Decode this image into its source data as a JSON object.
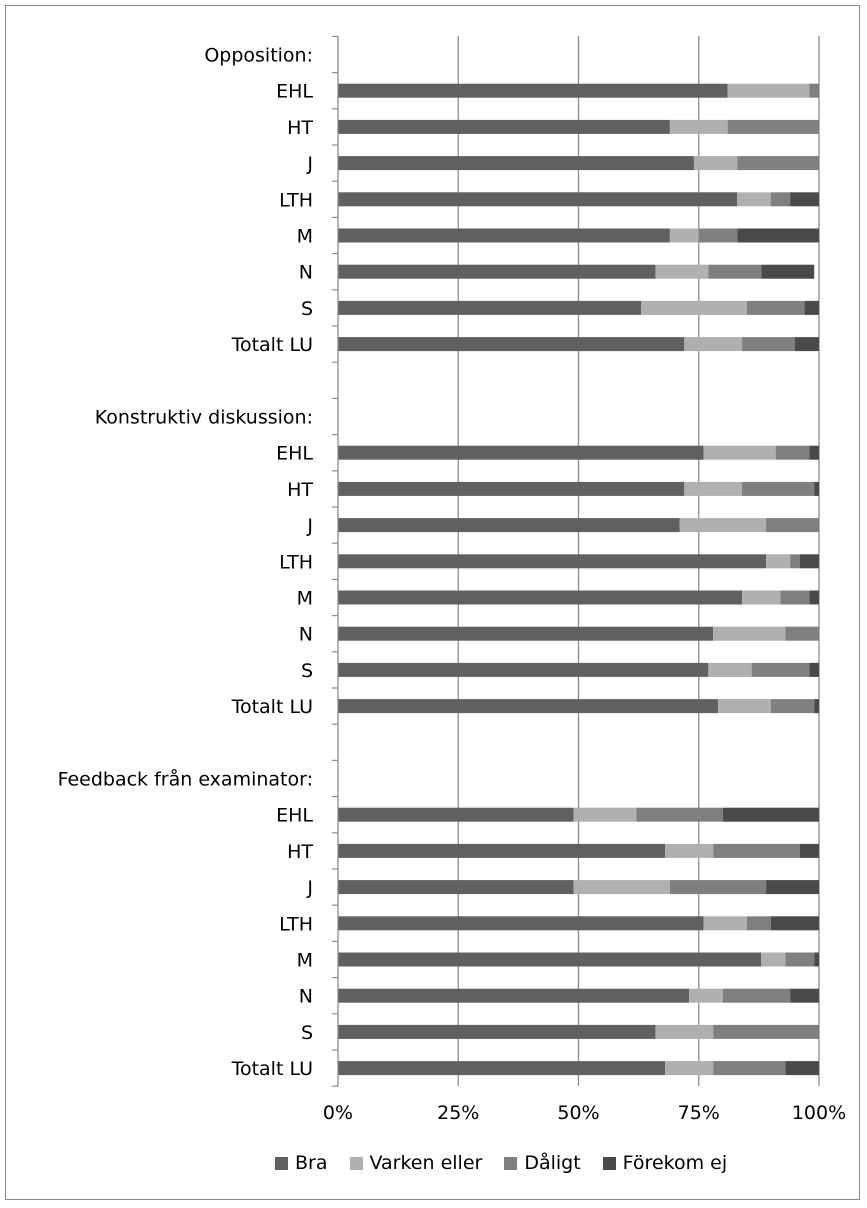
{
  "chart_data": {
    "type": "bar",
    "orientation": "horizontal",
    "stacked": true,
    "percent": true,
    "xlim": [
      0,
      100
    ],
    "xticks": [
      "0%",
      "25%",
      "50%",
      "75%",
      "100%"
    ],
    "grid": "vertical",
    "legend_position": "bottom",
    "categories": [
      "Opposition:",
      "EHL",
      "HT",
      "J",
      "LTH",
      "M",
      "N",
      "S",
      "Totalt LU",
      "",
      "Konstruktiv diskussion:",
      "EHL",
      "HT",
      "J",
      "LTH",
      "M",
      "N",
      "S",
      "Totalt LU",
      "",
      "Feedback från examinator:",
      "EHL",
      "HT",
      "J",
      "LTH",
      "M",
      "N",
      "S",
      "Totalt LU"
    ],
    "series": [
      {
        "name": "Bra",
        "color": "#606060",
        "values": [
          null,
          81,
          69,
          74,
          83,
          69,
          66,
          63,
          72,
          null,
          null,
          76,
          72,
          71,
          89,
          84,
          78,
          77,
          79,
          null,
          null,
          49,
          68,
          49,
          76,
          88,
          73,
          66,
          68
        ]
      },
      {
        "name": "Varken eller",
        "color": "#b0b0b0",
        "values": [
          null,
          17,
          12,
          9,
          7,
          6,
          11,
          22,
          12,
          null,
          null,
          15,
          12,
          18,
          5,
          8,
          15,
          9,
          11,
          null,
          null,
          13,
          10,
          20,
          9,
          5,
          7,
          12,
          10
        ]
      },
      {
        "name": "Dåligt",
        "color": "#7f7f7f",
        "values": [
          null,
          2,
          19,
          17,
          4,
          8,
          11,
          12,
          11,
          null,
          null,
          7,
          15,
          11,
          2,
          6,
          7,
          12,
          9,
          null,
          null,
          18,
          18,
          20,
          5,
          6,
          14,
          22,
          15
        ]
      },
      {
        "name": "Förekom ej",
        "color": "#4a4a4a",
        "values": [
          null,
          0,
          0,
          0,
          6,
          17,
          11,
          3,
          5,
          null,
          null,
          2,
          1,
          0,
          4,
          2,
          0,
          2,
          1,
          null,
          null,
          20,
          4,
          11,
          10,
          1,
          6,
          0,
          7
        ]
      }
    ]
  }
}
